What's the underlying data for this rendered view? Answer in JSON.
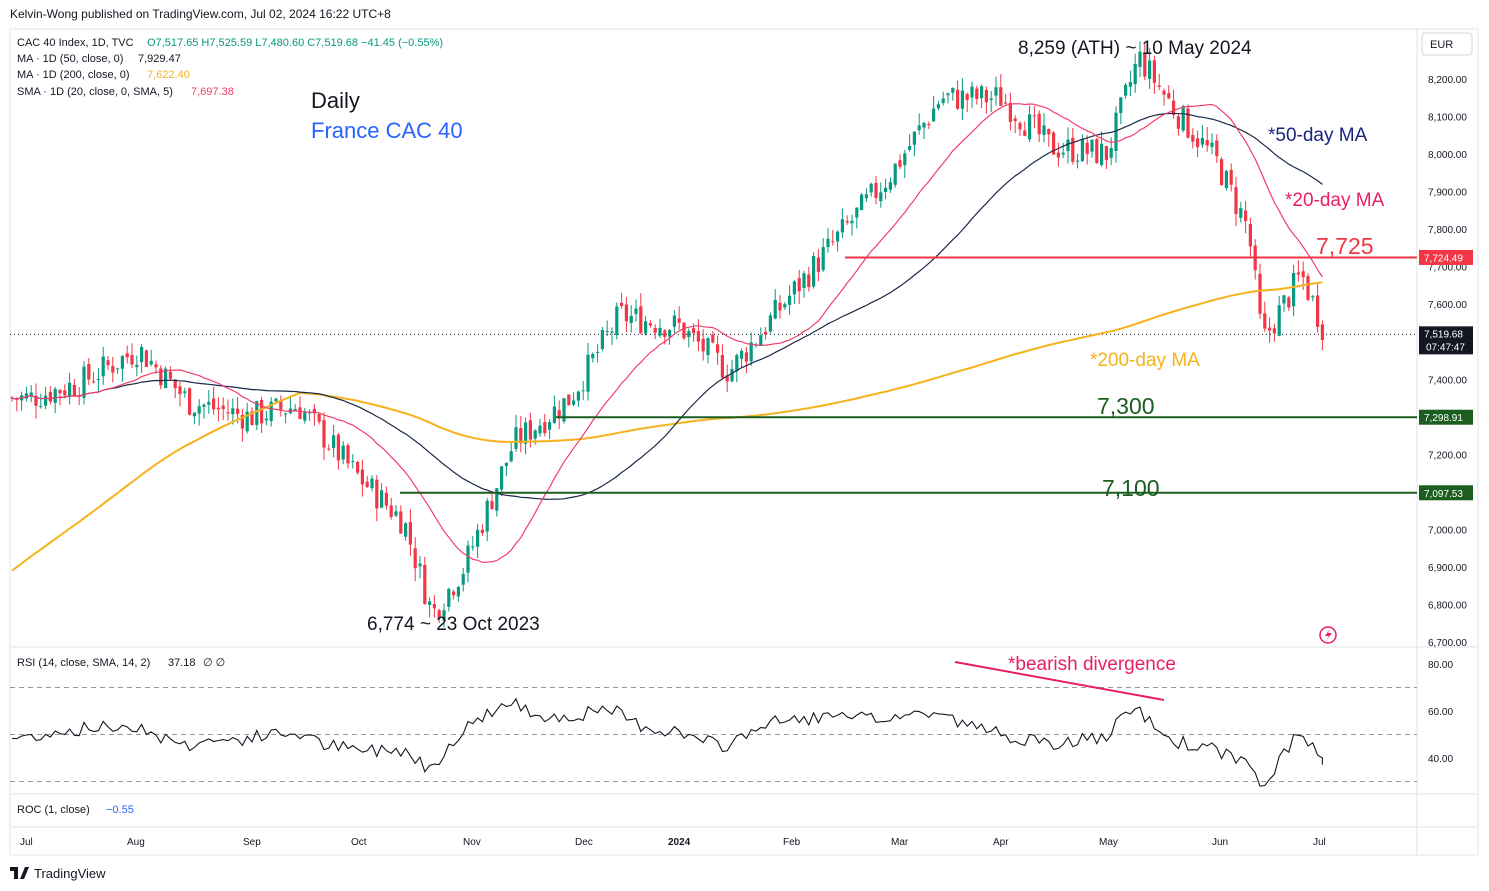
{
  "header": {
    "publisher": "Kelvin-Wong published on TradingView.com, Jul 02, 2024 16:22 UTC+8",
    "currency": "EUR",
    "footer_logo": "TradingView"
  },
  "legend": {
    "symbol": "CAC 40 Index, 1D, TVC",
    "ohlc": "O7,517.65  H7,525.59  L7,480.60  C7,519.68  −41.45 (−0.55%)",
    "ma50_label": "MA · 1D (50, close, 0)",
    "ma50_value": "7,929.47",
    "ma200_label": "MA · 1D (200, close, 0)",
    "ma200_value": "7,622.40",
    "sma20_label": "SMA · 1D (20, close, 0, SMA, 5)",
    "sma20_value": "7,697.38"
  },
  "annotations": {
    "timeframe": "Daily",
    "instrument": "France CAC 40",
    "ath": "8,259 (ATH) ~ 10 May 2024",
    "low": "6,774 ~ 23 Oct 2023",
    "ma50": "*50-day MA",
    "ma20": "*20-day MA",
    "ma200": "*200-day MA",
    "lvl7725": "7,725",
    "lvl7300": "7,300",
    "lvl7100": "7,100",
    "divergence": "*bearish divergence"
  },
  "price_tags": {
    "p7724": "7,724.49",
    "last": "7,519.68",
    "countdown": "07:47:47",
    "p7298": "7,298.91",
    "p7097": "7,097.53"
  },
  "rsi_label": "RSI (14, close, SMA, 14, 2)",
  "rsi_value": "37.18",
  "rsi_extra": "∅ ∅",
  "roc_label": "ROC (1, close)",
  "roc_value": "−0.55",
  "colors": {
    "up": "#089981",
    "down": "#f23645",
    "ma20": "#f23e6a",
    "ma50": "#1b2a4a",
    "ma200": "#f5b21b",
    "res": "#f23645",
    "sup": "#1b5e20",
    "ann_blue": "#2962ff",
    "ann_pink": "#e91e63",
    "ann_green": "#1b5e20",
    "ann_navy": "#1a237e"
  },
  "chart_data": {
    "type": "candlestick",
    "title": "Daily France CAC 40",
    "x_ticks": [
      "Jul",
      "Aug",
      "Sep",
      "Oct",
      "Nov",
      "Dec",
      "2024",
      "Feb",
      "Mar",
      "Apr",
      "May",
      "Jun",
      "Jul"
    ],
    "y_ticks": [
      "8,200.00",
      "8,100.00",
      "8,000.00",
      "7,900.00",
      "7,800.00",
      "7,700.00",
      "7,600.00",
      "7,500.00",
      "7,400.00",
      "7,300.00",
      "7,200.00",
      "7,100.00",
      "7,000.00",
      "6,900.00",
      "6,800.00",
      "6,700.00"
    ],
    "ylim": [
      6675,
      8295
    ],
    "close_series": [
      [
        "2023-07-01",
        7350
      ],
      [
        "2023-07-15",
        7390
      ],
      [
        "2023-08-01",
        7480
      ],
      [
        "2023-08-15",
        7340
      ],
      [
        "2023-09-01",
        7300
      ],
      [
        "2023-09-15",
        7330
      ],
      [
        "2023-10-01",
        7150
      ],
      [
        "2023-10-15",
        7020
      ],
      [
        "2023-10-23",
        6774
      ],
      [
        "2023-11-01",
        6900
      ],
      [
        "2023-11-15",
        7230
      ],
      [
        "2023-12-01",
        7350
      ],
      [
        "2023-12-15",
        7570
      ],
      [
        "2024-01-01",
        7540
      ],
      [
        "2024-01-15",
        7420
      ],
      [
        "2024-02-01",
        7620
      ],
      [
        "2024-02-15",
        7780
      ],
      [
        "2024-03-01",
        7950
      ],
      [
        "2024-03-15",
        8150
      ],
      [
        "2024-04-01",
        8150
      ],
      [
        "2024-04-15",
        8020
      ],
      [
        "2024-05-01",
        8000
      ],
      [
        "2024-05-10",
        8259
      ],
      [
        "2024-05-20",
        8120
      ],
      [
        "2024-06-01",
        7980
      ],
      [
        "2024-06-10",
        7800
      ],
      [
        "2024-06-14",
        7500
      ],
      [
        "2024-06-25",
        7680
      ],
      [
        "2024-07-02",
        7519.68
      ]
    ],
    "horizontal_levels": [
      7724.49,
      7298.91,
      7097.53
    ],
    "moving_averages": [
      {
        "name": "20-day MA",
        "last": 7697.38
      },
      {
        "name": "50-day MA",
        "last": 7929.47
      },
      {
        "name": "200-day MA",
        "last": 7622.4
      }
    ],
    "rsi": {
      "y_ticks": [
        "80.00",
        "60.00",
        "40.00"
      ],
      "ylim": [
        25,
        85
      ],
      "last": 37.18,
      "bands": [
        70,
        50,
        30
      ]
    }
  }
}
